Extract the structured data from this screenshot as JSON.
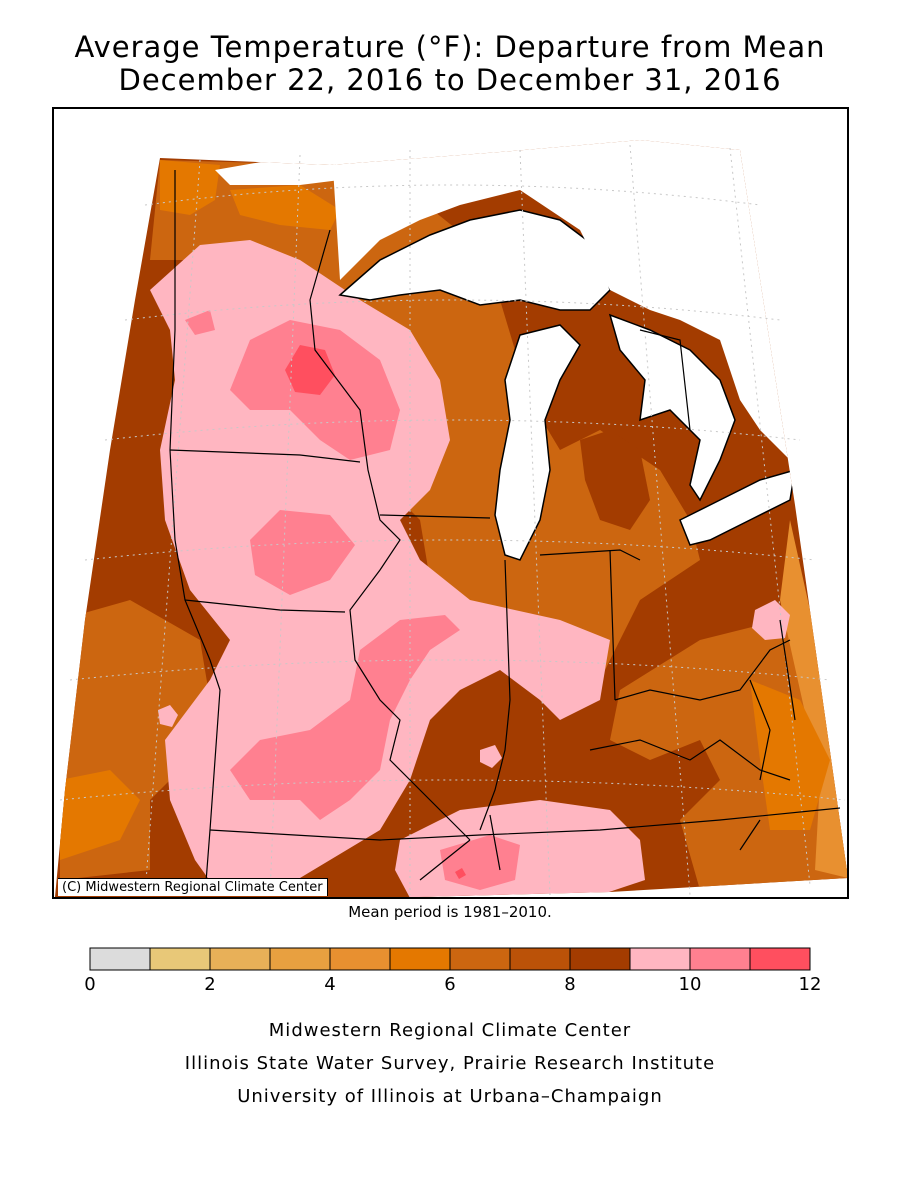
{
  "title_line1": "Average Temperature (°F): Departure from Mean",
  "title_line2": "December 22, 2016 to December 31, 2016",
  "copyright": "(C) Midwestern Regional Climate Center",
  "mean_period": "Mean period is 1981–2010.",
  "legend": {
    "colors": [
      "#dcdcdc",
      "#e8c878",
      "#e8b058",
      "#e8a040",
      "#e89030",
      "#e47800",
      "#cc6610",
      "#bb5208",
      "#a33c00",
      "#ffb6c1",
      "#ff8090",
      "#ff4f5f"
    ],
    "tick_values": [
      "0",
      "2",
      "4",
      "6",
      "8",
      "10",
      "12"
    ],
    "min": 0,
    "max": 12,
    "step": 1
  },
  "credits": [
    "Midwestern Regional Climate Center",
    "Illinois State Water Survey, Prairie Research Institute",
    "University of Illinois at Urbana–Champaign"
  ],
  "map_colors": {
    "water": "#ffffff",
    "border": "#000000",
    "grid": "#c8c8c8"
  }
}
